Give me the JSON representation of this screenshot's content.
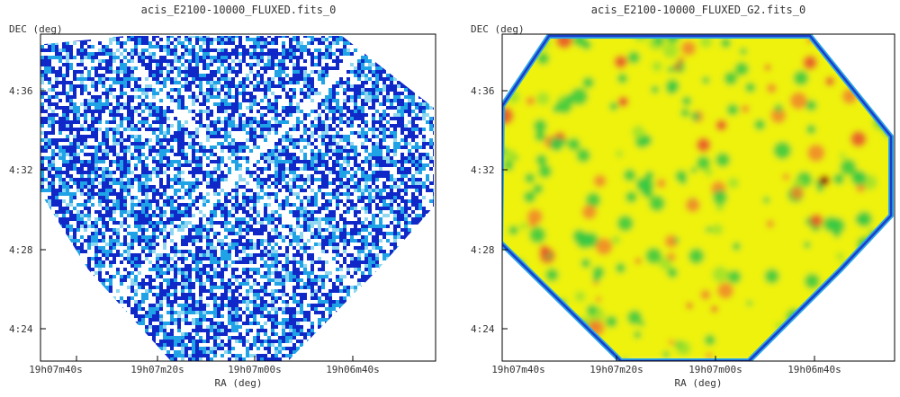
{
  "chart_data": [
    {
      "type": "heatmap",
      "title": "acis_E2100-10000_FLUXED.fits_0",
      "xlabel": "RA (deg)",
      "ylabel": "DEC (deg)",
      "x_ticks": [
        "19h07m40s",
        "19h07m20s",
        "19h07m00s",
        "19h06m40s"
      ],
      "y_ticks": [
        "4:36",
        "4:32",
        "4:28",
        "4:24"
      ],
      "colormap": "blue-white",
      "colors": {
        "low": "#ffffff",
        "mid": "#1fa3e6",
        "high": "#1028c8",
        "frame": "#000000"
      }
    },
    {
      "type": "heatmap",
      "title": "acis_E2100-10000_FLUXED_G2.fits_0",
      "xlabel": "RA (deg)",
      "ylabel": "DEC (deg)",
      "x_ticks": [
        "19h07m40s",
        "19h07m20s",
        "19h07m00s",
        "19h06m40s"
      ],
      "y_ticks": [
        "4:36",
        "4:32",
        "4:28",
        "4:24"
      ],
      "colormap": "rainbow-smoothed",
      "colors": {
        "edge": "#1e3cc8",
        "edge2": "#2aa8e8",
        "low": "#33c844",
        "mid": "#eef20a",
        "high": "#f0842a",
        "peak": "#b01a10"
      }
    }
  ]
}
